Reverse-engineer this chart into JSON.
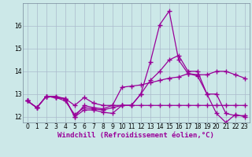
{
  "xlabel": "Windchill (Refroidissement éolien,°C)",
  "x": [
    0,
    1,
    2,
    3,
    4,
    5,
    6,
    7,
    8,
    9,
    10,
    11,
    12,
    13,
    14,
    15,
    16,
    17,
    18,
    19,
    20,
    21,
    22,
    23
  ],
  "lines": [
    [
      12.7,
      12.4,
      12.9,
      12.85,
      12.8,
      12.0,
      12.3,
      12.3,
      12.2,
      12.15,
      12.5,
      12.5,
      13.0,
      14.4,
      16.05,
      16.65,
      14.5,
      13.9,
      13.8,
      13.0,
      12.15,
      11.75,
      12.1,
      12.0
    ],
    [
      12.7,
      12.4,
      12.9,
      12.85,
      12.8,
      12.0,
      12.5,
      12.4,
      12.35,
      12.5,
      13.3,
      13.35,
      13.4,
      13.5,
      13.6,
      13.7,
      13.75,
      13.9,
      13.85,
      13.85,
      14.0,
      14.0,
      13.85,
      13.7
    ],
    [
      12.7,
      12.4,
      12.9,
      12.85,
      12.7,
      12.1,
      12.4,
      12.35,
      12.3,
      12.4,
      12.5,
      12.5,
      12.5,
      12.5,
      12.5,
      12.5,
      12.5,
      12.5,
      12.5,
      12.5,
      12.5,
      12.5,
      12.5,
      12.5
    ],
    [
      12.7,
      12.4,
      12.9,
      12.9,
      12.8,
      12.5,
      12.85,
      12.6,
      12.5,
      12.5,
      12.5,
      12.5,
      13.0,
      13.6,
      14.0,
      14.5,
      14.7,
      14.0,
      14.0,
      13.0,
      13.0,
      12.15,
      12.05,
      12.05
    ]
  ],
  "line_color": "#990099",
  "bg_color": "#cce8e8",
  "grid_color": "#aabbcc",
  "ylim": [
    11.75,
    17.0
  ],
  "xlim": [
    -0.5,
    23.5
  ],
  "yticks": [
    12,
    13,
    14,
    15,
    16
  ],
  "xticks": [
    0,
    1,
    2,
    3,
    4,
    5,
    6,
    7,
    8,
    9,
    10,
    11,
    12,
    13,
    14,
    15,
    16,
    17,
    18,
    19,
    20,
    21,
    22,
    23
  ],
  "marker": "+",
  "markersize": 4,
  "linewidth": 0.9,
  "tick_fontsize": 5.5,
  "xlabel_fontsize": 6.5
}
